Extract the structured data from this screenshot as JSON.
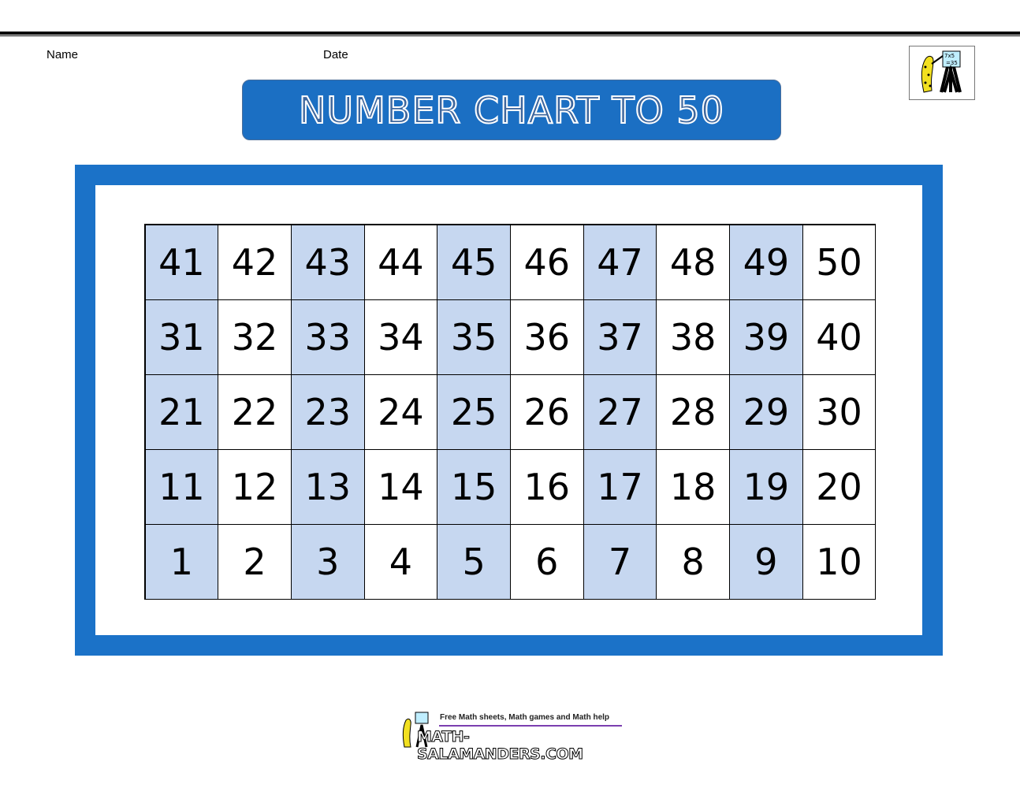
{
  "header": {
    "name_label": "Name",
    "date_label": "Date"
  },
  "title": "NUMBER CHART TO 50",
  "colors": {
    "frame": "#1b72c8",
    "title_bg": "#1b6fc3",
    "shaded_cell": "#c6d7f0"
  },
  "grid": {
    "rows": [
      [
        "41",
        "42",
        "43",
        "44",
        "45",
        "46",
        "47",
        "48",
        "49",
        "50"
      ],
      [
        "31",
        "32",
        "33",
        "34",
        "35",
        "36",
        "37",
        "38",
        "39",
        "40"
      ],
      [
        "21",
        "22",
        "23",
        "24",
        "25",
        "26",
        "27",
        "28",
        "29",
        "30"
      ],
      [
        "11",
        "12",
        "13",
        "14",
        "15",
        "16",
        "17",
        "18",
        "19",
        "20"
      ],
      [
        "1",
        "2",
        "3",
        "4",
        "5",
        "6",
        "7",
        "8",
        "9",
        "10"
      ]
    ]
  },
  "footer": {
    "tagline": "Free Math sheets, Math games and Math help",
    "site": "MATH-SALAMANDERS.COM",
    "logo_text": "7x5 =35"
  }
}
